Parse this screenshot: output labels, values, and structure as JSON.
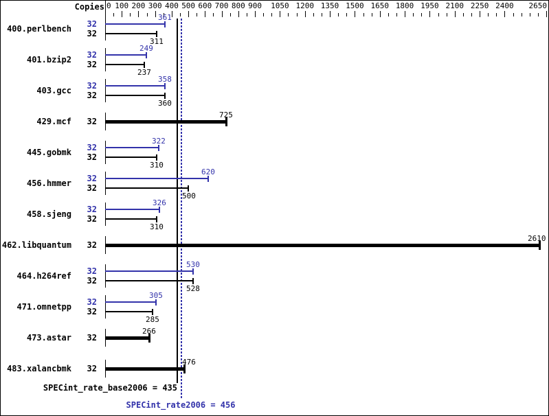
{
  "header": {
    "copies_label": "Copies"
  },
  "axis": {
    "min": 0,
    "max": 2650,
    "tick_step": 50,
    "labels": [
      0,
      100,
      200,
      300,
      400,
      500,
      600,
      700,
      800,
      900,
      1050,
      1200,
      1350,
      1500,
      1650,
      1800,
      1950,
      2100,
      2250,
      2400,
      2650
    ]
  },
  "colors": {
    "peak_blue": "#3232aa",
    "black": "#000000",
    "background": "#ffffff"
  },
  "chart_data": {
    "type": "bar",
    "orientation": "horizontal",
    "title": "",
    "xlabel": "",
    "ylabel": "Copies",
    "xlim": [
      0,
      2650
    ],
    "grid": false,
    "benchmarks": [
      {
        "name": "400.perlbench",
        "rows": [
          {
            "type": "peak",
            "copies": "32",
            "value": 361
          },
          {
            "type": "base",
            "copies": "32",
            "value": 311
          }
        ]
      },
      {
        "name": "401.bzip2",
        "rows": [
          {
            "type": "peak",
            "copies": "32",
            "value": 249
          },
          {
            "type": "base",
            "copies": "32",
            "value": 237
          }
        ]
      },
      {
        "name": "403.gcc",
        "rows": [
          {
            "type": "peak",
            "copies": "32",
            "value": 358
          },
          {
            "type": "base",
            "copies": "32",
            "value": 360
          }
        ]
      },
      {
        "name": "429.mcf",
        "rows": [
          {
            "type": "single",
            "copies": "32",
            "value": 725
          }
        ]
      },
      {
        "name": "445.gobmk",
        "rows": [
          {
            "type": "peak",
            "copies": "32",
            "value": 322
          },
          {
            "type": "base",
            "copies": "32",
            "value": 310
          }
        ]
      },
      {
        "name": "456.hmmer",
        "rows": [
          {
            "type": "peak",
            "copies": "32",
            "value": 620
          },
          {
            "type": "base",
            "copies": "32",
            "value": 500
          }
        ]
      },
      {
        "name": "458.sjeng",
        "rows": [
          {
            "type": "peak",
            "copies": "32",
            "value": 326
          },
          {
            "type": "base",
            "copies": "32",
            "value": 310
          }
        ]
      },
      {
        "name": "462.libquantum",
        "rows": [
          {
            "type": "single",
            "copies": "32",
            "value": 2610
          }
        ]
      },
      {
        "name": "464.h264ref",
        "rows": [
          {
            "type": "peak",
            "copies": "32",
            "value": 530
          },
          {
            "type": "base",
            "copies": "32",
            "value": 528
          }
        ]
      },
      {
        "name": "471.omnetpp",
        "rows": [
          {
            "type": "peak",
            "copies": "32",
            "value": 305
          },
          {
            "type": "base",
            "copies": "32",
            "value": 285
          }
        ]
      },
      {
        "name": "473.astar",
        "rows": [
          {
            "type": "single",
            "copies": "32",
            "value": 266
          }
        ]
      },
      {
        "name": "483.xalancbmk",
        "rows": [
          {
            "type": "single",
            "copies": "32",
            "value": 476
          }
        ]
      }
    ],
    "summary": {
      "base_label": "SPECint_rate_base2006 = 435",
      "base_value": 435,
      "peak_label": "SPECint_rate2006 = 456",
      "peak_value": 456
    }
  }
}
